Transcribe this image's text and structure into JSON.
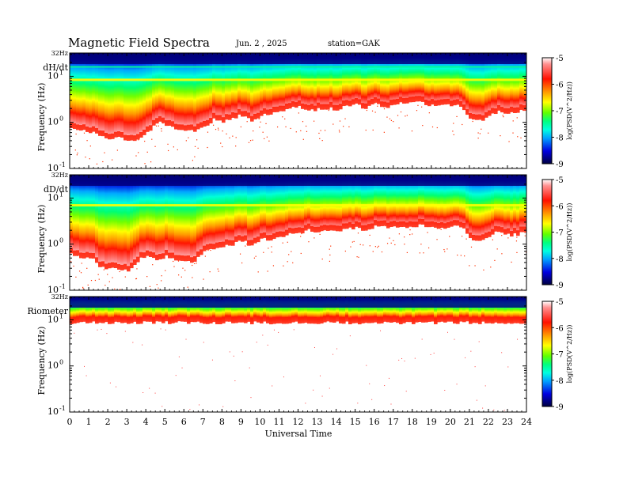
{
  "header": {
    "title": "Magnetic  Field  Spectra",
    "date": "Jun.  2  ,  2025",
    "station": "station=GAK"
  },
  "colors": {
    "colormap": [
      "#000050",
      "#0000c0",
      "#0050ff",
      "#00b4ff",
      "#00ffe0",
      "#00ff60",
      "#80ff00",
      "#ffff00",
      "#ffa000",
      "#ff2000",
      "#e80000",
      "#ff9090",
      "#ffffff"
    ]
  },
  "chart_data": [
    {
      "type": "heatmap",
      "panel_label": "dH/dt",
      "ylabel": "Frequency  (Hz)",
      "xlabel": "",
      "x_range_hours": [
        0,
        24
      ],
      "y_scale": "log",
      "y_range_hz": [
        0.1,
        32
      ],
      "ytick_top": "32Hz",
      "yticks": [
        {
          "base": "10",
          "exp": "1",
          "value": 10
        },
        {
          "base": "10",
          "exp": "0",
          "value": 1
        },
        {
          "base": "10",
          "exp": "-1",
          "value": 0.1
        }
      ],
      "colorbar": {
        "label": "log(PSD(V^2/Hz))",
        "ticks": [
          "-5",
          "-6",
          "-7",
          "-8",
          "-9"
        ],
        "range": [
          -9,
          -5
        ]
      },
      "edge_hz": [
        [
          0.0,
          0.8
        ],
        [
          0.5,
          0.7
        ],
        [
          1.0,
          0.65
        ],
        [
          1.5,
          0.55
        ],
        [
          2.0,
          0.45
        ],
        [
          2.5,
          0.5
        ],
        [
          3.0,
          0.4
        ],
        [
          3.5,
          0.45
        ],
        [
          4.0,
          0.6
        ],
        [
          4.4,
          0.9
        ],
        [
          4.6,
          1.1
        ],
        [
          5.0,
          0.9
        ],
        [
          5.5,
          0.75
        ],
        [
          6.0,
          0.7
        ],
        [
          6.5,
          0.65
        ],
        [
          7.0,
          0.8
        ],
        [
          7.5,
          1.2
        ],
        [
          8.0,
          1.05
        ],
        [
          8.5,
          1.3
        ],
        [
          9.0,
          1.5
        ],
        [
          9.5,
          1.1
        ],
        [
          10.0,
          1.5
        ],
        [
          10.5,
          1.6
        ],
        [
          11.0,
          1.7
        ],
        [
          11.5,
          2.2
        ],
        [
          12.0,
          2.2
        ],
        [
          12.5,
          1.8
        ],
        [
          13.0,
          2.0
        ],
        [
          13.5,
          2.1
        ],
        [
          14.0,
          2.0
        ],
        [
          14.5,
          2.3
        ],
        [
          15.0,
          2.5
        ],
        [
          15.5,
          2.0
        ],
        [
          16.0,
          2.7
        ],
        [
          16.5,
          2.2
        ],
        [
          17.0,
          2.5
        ],
        [
          17.5,
          2.8
        ],
        [
          18.0,
          3.1
        ],
        [
          18.5,
          2.7
        ],
        [
          19.0,
          2.4
        ],
        [
          19.5,
          2.6
        ],
        [
          20.0,
          2.5
        ],
        [
          20.5,
          2.2
        ],
        [
          21.0,
          1.2
        ],
        [
          21.5,
          1.1
        ],
        [
          22.0,
          1.5
        ],
        [
          22.5,
          1.8
        ],
        [
          23.0,
          1.6
        ],
        [
          23.5,
          1.8
        ],
        [
          24.0,
          2.0
        ]
      ]
    },
    {
      "type": "heatmap",
      "panel_label": "dD/dt",
      "ylabel": "Frequency  (Hz)",
      "xlabel": "",
      "x_range_hours": [
        0,
        24
      ],
      "y_scale": "log",
      "y_range_hz": [
        0.1,
        32
      ],
      "ytick_top": "32Hz",
      "yticks": [
        {
          "base": "10",
          "exp": "1",
          "value": 10
        },
        {
          "base": "10",
          "exp": "0",
          "value": 1
        },
        {
          "base": "10",
          "exp": "-1",
          "value": 0.1
        }
      ],
      "colorbar": {
        "label": "log(PSD(V^2/Hz))",
        "ticks": [
          "-5",
          "-6",
          "-7",
          "-8",
          "-9"
        ],
        "range": [
          -9,
          -5
        ]
      },
      "edge_hz": [
        [
          0.0,
          0.65
        ],
        [
          0.5,
          0.55
        ],
        [
          1.0,
          0.55
        ],
        [
          1.5,
          0.35
        ],
        [
          2.0,
          0.3
        ],
        [
          2.5,
          0.3
        ],
        [
          3.0,
          0.28
        ],
        [
          3.5,
          0.45
        ],
        [
          4.0,
          0.6
        ],
        [
          4.5,
          0.5
        ],
        [
          5.0,
          0.55
        ],
        [
          5.5,
          0.45
        ],
        [
          6.0,
          0.45
        ],
        [
          6.5,
          0.4
        ],
        [
          7.0,
          0.75
        ],
        [
          7.5,
          0.85
        ],
        [
          8.0,
          0.9
        ],
        [
          8.5,
          1.0
        ],
        [
          9.0,
          1.25
        ],
        [
          9.5,
          0.9
        ],
        [
          10.0,
          1.4
        ],
        [
          10.5,
          1.2
        ],
        [
          11.0,
          1.5
        ],
        [
          11.5,
          1.8
        ],
        [
          12.0,
          1.7
        ],
        [
          12.5,
          2.1
        ],
        [
          13.0,
          1.8
        ],
        [
          13.5,
          2.2
        ],
        [
          14.0,
          2.0
        ],
        [
          14.5,
          2.4
        ],
        [
          15.0,
          2.3
        ],
        [
          15.5,
          1.9
        ],
        [
          16.0,
          2.5
        ],
        [
          16.5,
          2.4
        ],
        [
          17.0,
          2.6
        ],
        [
          17.5,
          2.4
        ],
        [
          18.0,
          2.6
        ],
        [
          18.5,
          2.6
        ],
        [
          19.0,
          2.3
        ],
        [
          19.5,
          2.2
        ],
        [
          20.0,
          2.5
        ],
        [
          20.5,
          2.6
        ],
        [
          21.0,
          1.3
        ],
        [
          21.5,
          1.2
        ],
        [
          22.0,
          1.5
        ],
        [
          22.5,
          2.1
        ],
        [
          23.0,
          1.6
        ],
        [
          23.5,
          1.7
        ],
        [
          24.0,
          2.0
        ]
      ]
    },
    {
      "type": "heatmap",
      "panel_label": "Riometer",
      "ylabel": "Frequency  (Hz)",
      "xlabel": "Universal  Time",
      "x_range_hours": [
        0,
        24
      ],
      "xticks": [
        "0",
        "1",
        "2",
        "3",
        "4",
        "5",
        "6",
        "7",
        "8",
        "9",
        "10",
        "11",
        "12",
        "13",
        "14",
        "15",
        "16",
        "17",
        "18",
        "19",
        "20",
        "21",
        "22",
        "23",
        "24"
      ],
      "y_scale": "log",
      "y_range_hz": [
        0.1,
        32
      ],
      "ytick_top": "32Hz",
      "yticks": [
        {
          "base": "10",
          "exp": "1",
          "value": 10
        },
        {
          "base": "10",
          "exp": "0",
          "value": 1
        },
        {
          "base": "10",
          "exp": "-1",
          "value": 0.1
        }
      ],
      "colorbar": {
        "label": "log(PSD(V^2/Hz))",
        "ticks": [
          "-5",
          "-6",
          "-7",
          "-8",
          "-9"
        ],
        "range": [
          -9,
          -5
        ]
      },
      "edge_hz": [
        [
          0.0,
          9.0
        ],
        [
          24.0,
          9.0
        ]
      ]
    }
  ]
}
